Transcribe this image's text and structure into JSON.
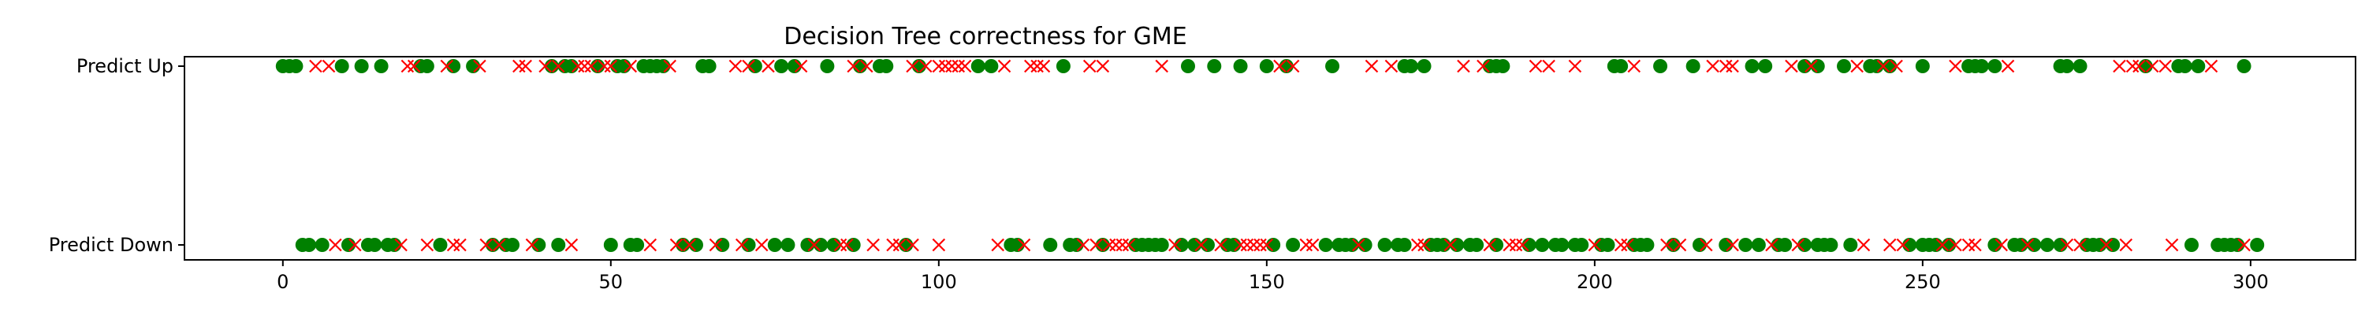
{
  "chart_data": {
    "type": "scatter",
    "title": "Decision Tree correctness for GME",
    "xlabel": "",
    "ylabel": "",
    "xlim": [
      -15,
      316
    ],
    "xticks": [
      0,
      50,
      100,
      150,
      200,
      250,
      300
    ],
    "xtick_labels": [
      "0",
      "50",
      "100",
      "150",
      "200",
      "250",
      "300"
    ],
    "yticks": [
      1,
      0
    ],
    "ytick_labels": [
      "Predict Up",
      "Predict Down"
    ],
    "legend": "none",
    "grid": false,
    "colors": {
      "correct": "#008000",
      "incorrect": "#ff0000"
    },
    "series": [
      {
        "marker": "circle",
        "color": "#008000",
        "points": [
          [
            0,
            1
          ],
          [
            1,
            1
          ],
          [
            2,
            1
          ],
          [
            9,
            1
          ],
          [
            12,
            1
          ],
          [
            15,
            1
          ],
          [
            21,
            1
          ],
          [
            22,
            1
          ],
          [
            26,
            1
          ],
          [
            29,
            1
          ],
          [
            41,
            1
          ],
          [
            43,
            1
          ],
          [
            44,
            1
          ],
          [
            48,
            1
          ],
          [
            51,
            1
          ],
          [
            52,
            1
          ],
          [
            55,
            1
          ],
          [
            56,
            1
          ],
          [
            57,
            1
          ],
          [
            58,
            1
          ],
          [
            64,
            1
          ],
          [
            65,
            1
          ],
          [
            72,
            1
          ],
          [
            76,
            1
          ],
          [
            78,
            1
          ],
          [
            83,
            1
          ],
          [
            88,
            1
          ],
          [
            91,
            1
          ],
          [
            92,
            1
          ],
          [
            97,
            1
          ],
          [
            106,
            1
          ],
          [
            108,
            1
          ],
          [
            119,
            1
          ],
          [
            138,
            1
          ],
          [
            142,
            1
          ],
          [
            146,
            1
          ],
          [
            150,
            1
          ],
          [
            153,
            1
          ],
          [
            160,
            1
          ],
          [
            171,
            1
          ],
          [
            172,
            1
          ],
          [
            174,
            1
          ],
          [
            184,
            1
          ],
          [
            185,
            1
          ],
          [
            186,
            1
          ],
          [
            203,
            1
          ],
          [
            204,
            1
          ],
          [
            210,
            1
          ],
          [
            215,
            1
          ],
          [
            224,
            1
          ],
          [
            226,
            1
          ],
          [
            232,
            1
          ],
          [
            234,
            1
          ],
          [
            238,
            1
          ],
          [
            242,
            1
          ],
          [
            243,
            1
          ],
          [
            245,
            1
          ],
          [
            250,
            1
          ],
          [
            257,
            1
          ],
          [
            258,
            1
          ],
          [
            259,
            1
          ],
          [
            261,
            1
          ],
          [
            271,
            1
          ],
          [
            272,
            1
          ],
          [
            274,
            1
          ],
          [
            284,
            1
          ],
          [
            289,
            1
          ],
          [
            290,
            1
          ],
          [
            292,
            1
          ],
          [
            299,
            1
          ],
          [
            3,
            0
          ],
          [
            4,
            0
          ],
          [
            6,
            0
          ],
          [
            10,
            0
          ],
          [
            13,
            0
          ],
          [
            14,
            0
          ],
          [
            16,
            0
          ],
          [
            17,
            0
          ],
          [
            24,
            0
          ],
          [
            32,
            0
          ],
          [
            34,
            0
          ],
          [
            35,
            0
          ],
          [
            39,
            0
          ],
          [
            42,
            0
          ],
          [
            50,
            0
          ],
          [
            53,
            0
          ],
          [
            54,
            0
          ],
          [
            61,
            0
          ],
          [
            63,
            0
          ],
          [
            67,
            0
          ],
          [
            71,
            0
          ],
          [
            75,
            0
          ],
          [
            77,
            0
          ],
          [
            80,
            0
          ],
          [
            82,
            0
          ],
          [
            84,
            0
          ],
          [
            87,
            0
          ],
          [
            95,
            0
          ],
          [
            111,
            0
          ],
          [
            112,
            0
          ],
          [
            117,
            0
          ],
          [
            120,
            0
          ],
          [
            121,
            0
          ],
          [
            125,
            0
          ],
          [
            130,
            0
          ],
          [
            131,
            0
          ],
          [
            132,
            0
          ],
          [
            133,
            0
          ],
          [
            134,
            0
          ],
          [
            137,
            0
          ],
          [
            139,
            0
          ],
          [
            141,
            0
          ],
          [
            144,
            0
          ],
          [
            145,
            0
          ],
          [
            151,
            0
          ],
          [
            154,
            0
          ],
          [
            159,
            0
          ],
          [
            161,
            0
          ],
          [
            162,
            0
          ],
          [
            163,
            0
          ],
          [
            165,
            0
          ],
          [
            168,
            0
          ],
          [
            170,
            0
          ],
          [
            171,
            0
          ],
          [
            175,
            0
          ],
          [
            176,
            0
          ],
          [
            177,
            0
          ],
          [
            179,
            0
          ],
          [
            181,
            0
          ],
          [
            182,
            0
          ],
          [
            185,
            0
          ],
          [
            190,
            0
          ],
          [
            192,
            0
          ],
          [
            194,
            0
          ],
          [
            195,
            0
          ],
          [
            197,
            0
          ],
          [
            198,
            0
          ],
          [
            201,
            0
          ],
          [
            202,
            0
          ],
          [
            206,
            0
          ],
          [
            207,
            0
          ],
          [
            208,
            0
          ],
          [
            212,
            0
          ],
          [
            216,
            0
          ],
          [
            220,
            0
          ],
          [
            223,
            0
          ],
          [
            225,
            0
          ],
          [
            228,
            0
          ],
          [
            229,
            0
          ],
          [
            232,
            0
          ],
          [
            234,
            0
          ],
          [
            235,
            0
          ],
          [
            236,
            0
          ],
          [
            239,
            0
          ],
          [
            248,
            0
          ],
          [
            250,
            0
          ],
          [
            251,
            0
          ],
          [
            252,
            0
          ],
          [
            254,
            0
          ],
          [
            261,
            0
          ],
          [
            264,
            0
          ],
          [
            265,
            0
          ],
          [
            267,
            0
          ],
          [
            269,
            0
          ],
          [
            271,
            0
          ],
          [
            275,
            0
          ],
          [
            276,
            0
          ],
          [
            277,
            0
          ],
          [
            279,
            0
          ],
          [
            291,
            0
          ],
          [
            295,
            0
          ],
          [
            296,
            0
          ],
          [
            297,
            0
          ],
          [
            298,
            0
          ],
          [
            301,
            0
          ]
        ]
      },
      {
        "marker": "x",
        "color": "#ff0000",
        "points": [
          [
            5,
            1
          ],
          [
            7,
            1
          ],
          [
            19,
            1
          ],
          [
            20,
            1
          ],
          [
            25,
            1
          ],
          [
            30,
            1
          ],
          [
            36,
            1
          ],
          [
            37,
            1
          ],
          [
            40,
            1
          ],
          [
            42,
            1
          ],
          [
            45,
            1
          ],
          [
            46,
            1
          ],
          [
            47,
            1
          ],
          [
            49,
            1
          ],
          [
            50,
            1
          ],
          [
            53,
            1
          ],
          [
            59,
            1
          ],
          [
            69,
            1
          ],
          [
            71,
            1
          ],
          [
            74,
            1
          ],
          [
            79,
            1
          ],
          [
            87,
            1
          ],
          [
            89,
            1
          ],
          [
            96,
            1
          ],
          [
            98,
            1
          ],
          [
            100,
            1
          ],
          [
            101,
            1
          ],
          [
            102,
            1
          ],
          [
            103,
            1
          ],
          [
            104,
            1
          ],
          [
            110,
            1
          ],
          [
            114,
            1
          ],
          [
            115,
            1
          ],
          [
            116,
            1
          ],
          [
            123,
            1
          ],
          [
            125,
            1
          ],
          [
            134,
            1
          ],
          [
            152,
            1
          ],
          [
            154,
            1
          ],
          [
            166,
            1
          ],
          [
            169,
            1
          ],
          [
            180,
            1
          ],
          [
            183,
            1
          ],
          [
            191,
            1
          ],
          [
            193,
            1
          ],
          [
            197,
            1
          ],
          [
            206,
            1
          ],
          [
            218,
            1
          ],
          [
            220,
            1
          ],
          [
            221,
            1
          ],
          [
            230,
            1
          ],
          [
            233,
            1
          ],
          [
            240,
            1
          ],
          [
            244,
            1
          ],
          [
            246,
            1
          ],
          [
            255,
            1
          ],
          [
            263,
            1
          ],
          [
            280,
            1
          ],
          [
            282,
            1
          ],
          [
            283,
            1
          ],
          [
            285,
            1
          ],
          [
            287,
            1
          ],
          [
            294,
            1
          ],
          [
            8,
            0
          ],
          [
            11,
            0
          ],
          [
            18,
            0
          ],
          [
            22,
            0
          ],
          [
            26,
            0
          ],
          [
            27,
            0
          ],
          [
            31,
            0
          ],
          [
            33,
            0
          ],
          [
            38,
            0
          ],
          [
            44,
            0
          ],
          [
            56,
            0
          ],
          [
            60,
            0
          ],
          [
            62,
            0
          ],
          [
            66,
            0
          ],
          [
            70,
            0
          ],
          [
            73,
            0
          ],
          [
            81,
            0
          ],
          [
            85,
            0
          ],
          [
            86,
            0
          ],
          [
            90,
            0
          ],
          [
            93,
            0
          ],
          [
            94,
            0
          ],
          [
            96,
            0
          ],
          [
            100,
            0
          ],
          [
            109,
            0
          ],
          [
            113,
            0
          ],
          [
            122,
            0
          ],
          [
            124,
            0
          ],
          [
            126,
            0
          ],
          [
            127,
            0
          ],
          [
            128,
            0
          ],
          [
            129,
            0
          ],
          [
            136,
            0
          ],
          [
            140,
            0
          ],
          [
            143,
            0
          ],
          [
            146,
            0
          ],
          [
            147,
            0
          ],
          [
            148,
            0
          ],
          [
            149,
            0
          ],
          [
            150,
            0
          ],
          [
            156,
            0
          ],
          [
            157,
            0
          ],
          [
            164,
            0
          ],
          [
            173,
            0
          ],
          [
            174,
            0
          ],
          [
            178,
            0
          ],
          [
            184,
            0
          ],
          [
            187,
            0
          ],
          [
            188,
            0
          ],
          [
            189,
            0
          ],
          [
            200,
            0
          ],
          [
            204,
            0
          ],
          [
            205,
            0
          ],
          [
            211,
            0
          ],
          [
            213,
            0
          ],
          [
            217,
            0
          ],
          [
            221,
            0
          ],
          [
            227,
            0
          ],
          [
            231,
            0
          ],
          [
            241,
            0
          ],
          [
            245,
            0
          ],
          [
            247,
            0
          ],
          [
            253,
            0
          ],
          [
            255,
            0
          ],
          [
            257,
            0
          ],
          [
            258,
            0
          ],
          [
            262,
            0
          ],
          [
            266,
            0
          ],
          [
            272,
            0
          ],
          [
            274,
            0
          ],
          [
            278,
            0
          ],
          [
            281,
            0
          ],
          [
            288,
            0
          ],
          [
            299,
            0
          ]
        ]
      }
    ]
  }
}
